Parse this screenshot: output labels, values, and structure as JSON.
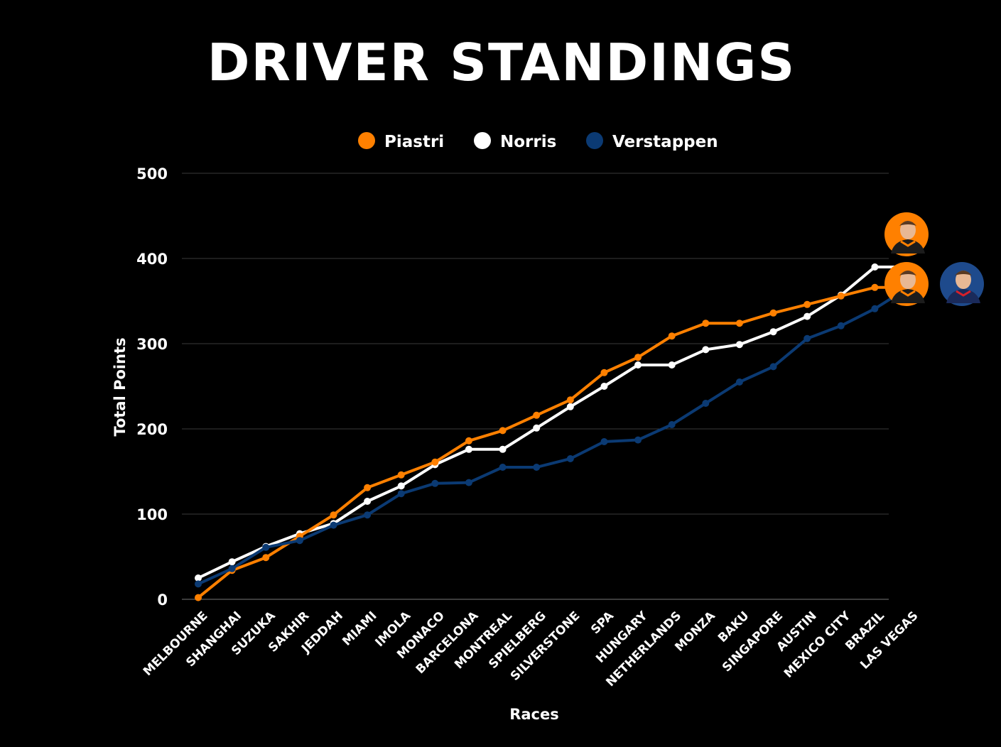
{
  "chart_data": {
    "type": "line",
    "title": "DRIVER STANDINGS",
    "xlabel": "Races",
    "ylabel": "Total Points",
    "ylim": [
      0,
      500
    ],
    "yticks": [
      0,
      100,
      200,
      300,
      400,
      500
    ],
    "grid": true,
    "legend_position": "top-center",
    "categories": [
      "Melbourne",
      "Shanghai",
      "Suzuka",
      "Sakhir",
      "Jeddah",
      "Miami",
      "Imola",
      "Monaco",
      "Barcelona",
      "Montreal",
      "Spielberg",
      "Silverstone",
      "Spa",
      "Hungary",
      "Netherlands",
      "Monza",
      "Baku",
      "Singapore",
      "Austin",
      "Mexico City",
      "Brazil",
      "Las Vegas"
    ],
    "series": [
      {
        "name": "Piastri",
        "color": "#ff8000",
        "values": [
          2,
          34,
          49,
          74,
          99,
          131,
          146,
          161,
          186,
          198,
          216,
          234,
          266,
          284,
          309,
          324,
          324,
          336,
          346,
          356,
          366,
          366
        ]
      },
      {
        "name": "Norris",
        "color": "#ffffff",
        "values": [
          25,
          44,
          62,
          77,
          89,
          115,
          133,
          158,
          176,
          176,
          201,
          226,
          250,
          275,
          275,
          293,
          299,
          314,
          332,
          357,
          390,
          390
        ]
      },
      {
        "name": "Verstappen",
        "color": "#0b3a73",
        "values": [
          18,
          36,
          61,
          69,
          87,
          99,
          124,
          136,
          137,
          155,
          155,
          165,
          185,
          187,
          205,
          230,
          255,
          273,
          306,
          321,
          341,
          366
        ]
      }
    ],
    "end_avatars": [
      {
        "driver": "Norris",
        "icon": "driver-portrait-icon",
        "color": "#ff8000"
      },
      {
        "driver": "Piastri",
        "icon": "driver-portrait-icon",
        "color": "#ff8000"
      },
      {
        "driver": "Verstappen",
        "icon": "driver-portrait-icon",
        "color": "#1e4a8c"
      }
    ]
  }
}
